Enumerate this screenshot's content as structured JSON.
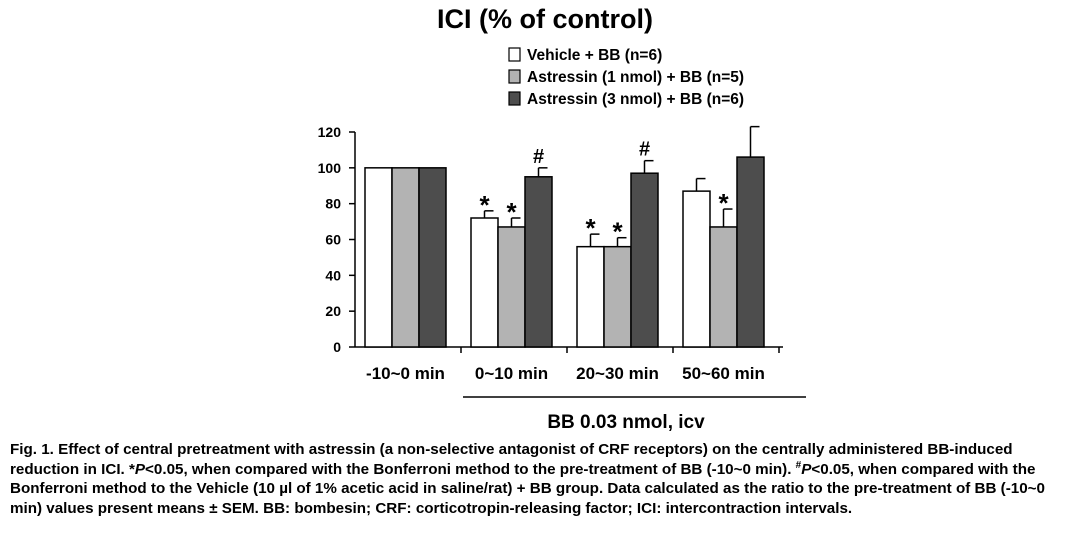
{
  "chart_data": {
    "type": "bar",
    "title": "ICI (% of control)",
    "categories": [
      "-10~0 min",
      "0~10 min",
      "20~30 min",
      "50~60 min"
    ],
    "series": [
      {
        "name": "Vehicle + BB (n=6)",
        "color": "#ffffff",
        "values": [
          100,
          72,
          56,
          87
        ],
        "errors": [
          0,
          4,
          7,
          7
        ],
        "markers": [
          "",
          "*",
          "*",
          ""
        ]
      },
      {
        "name": "Astressin (1 nmol) + BB (n=5)",
        "color": "#b3b3b3",
        "values": [
          100,
          67,
          56,
          67
        ],
        "errors": [
          0,
          5,
          5,
          10
        ],
        "markers": [
          "",
          "*",
          "*",
          "*"
        ]
      },
      {
        "name": "Astressin (3 nmol) + BB (n=6)",
        "color": "#4d4d4d",
        "values": [
          100,
          95,
          97,
          106
        ],
        "errors": [
          0,
          5,
          7,
          17
        ],
        "markers": [
          "",
          "#",
          "#",
          ""
        ]
      }
    ],
    "ylim": [
      0,
      120
    ],
    "yticks": [
      0,
      20,
      40,
      60,
      80,
      100,
      120
    ],
    "group_label": "BB 0.03 nmol, icv",
    "legend_position": "top-center",
    "grid": false
  },
  "caption": {
    "p1": "Fig. 1. Effect of central pretreatment with astressin (a non-selective antagonist of CRF receptors) on the centrally administered BB-induced reduction in ICI. ",
    "sig1_star": "*",
    "sig1_p": "P",
    "sig1_rest": "<0.05, when compared with the Bonferroni method to the pre-treatment of BB (-10~0 min).  ",
    "sig2_hash": "#",
    "sig2_p": "P",
    "sig2_rest": "<0.05, when compared with the Bonferroni method to the Vehicle (10 µl of 1% acetic acid in saline/rat) + BB group.  Data calculated as the ratio to the pre-treatment of BB (-10~0 min) values present means ± SEM.  BB: bombesin; CRF: corticotropin-releasing factor; ICI: intercontraction intervals."
  }
}
